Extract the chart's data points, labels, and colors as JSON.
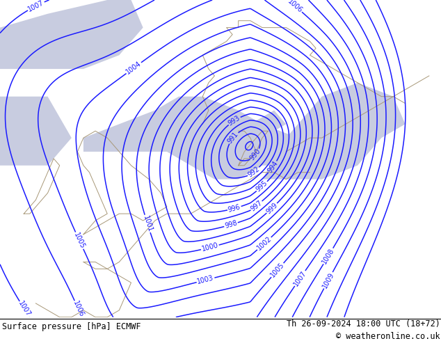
{
  "title_left": "Surface pressure [hPa] ECMWF",
  "title_right": "Th 26-09-2024 18:00 UTC (18+72)",
  "copyright": "© weatheronline.co.uk",
  "bg_green": "#99ff66",
  "sea_color": "#c8cce0",
  "contour_color": "#1a1aff",
  "contour_linewidth": 1.1,
  "figsize": [
    6.34,
    4.9
  ],
  "dpi": 100,
  "bottom_bar_color": "#ffffff",
  "font_size_bottom": 8.5,
  "font_size_label": 7,
  "coast_color": "#a89878"
}
